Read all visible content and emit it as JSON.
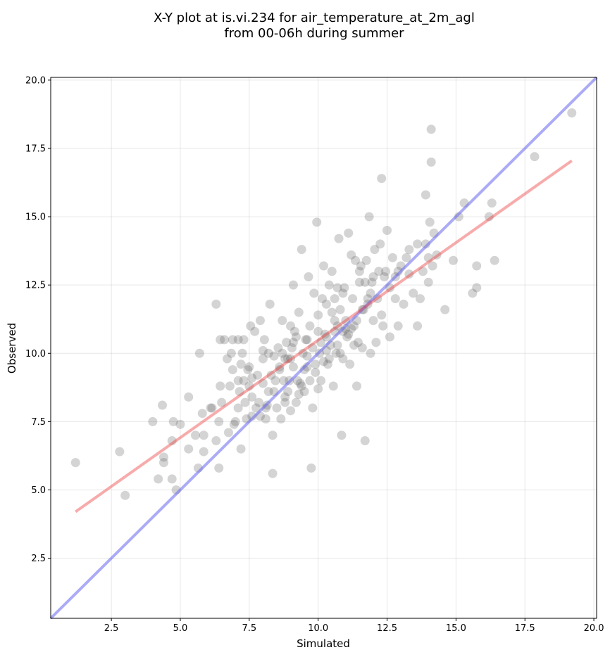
{
  "chart_data": {
    "type": "scatter",
    "title_lines": [
      "X-Y plot at is.vi.234 for air_temperature_at_2m_agl",
      "from 00-06h during summer"
    ],
    "xlabel": "Simulated",
    "ylabel": "Observed",
    "xlim": [
      0.3,
      20.1
    ],
    "ylim": [
      0.3,
      20.1
    ],
    "x_ticks": [
      2.5,
      5.0,
      7.5,
      10.0,
      12.5,
      15.0,
      17.5,
      20.0
    ],
    "y_ticks": [
      2.5,
      5.0,
      7.5,
      10.0,
      12.5,
      15.0,
      17.5,
      20.0
    ],
    "x_tick_labels": [
      "2.5",
      "5.0",
      "7.5",
      "10.0",
      "12.5",
      "15.0",
      "17.5",
      "20.0"
    ],
    "y_tick_labels": [
      "2.5",
      "5.0",
      "7.5",
      "10.0",
      "12.5",
      "15.0",
      "17.5",
      "20.0"
    ],
    "grid": true,
    "point_color": "#555555",
    "point_opacity": 0.25,
    "identity_line": {
      "color": "#6666ee",
      "opacity": 0.55,
      "from": [
        0.3,
        0.3
      ],
      "to": [
        20.1,
        20.1
      ]
    },
    "fit_line": {
      "color": "#ee4444",
      "opacity": 0.45,
      "from": [
        1.2,
        4.2
      ],
      "to": [
        19.2,
        17.05
      ]
    },
    "points": [
      [
        1.2,
        6.0
      ],
      [
        2.8,
        6.4
      ],
      [
        3.0,
        4.8
      ],
      [
        4.0,
        7.5
      ],
      [
        4.2,
        5.4
      ],
      [
        4.35,
        8.1
      ],
      [
        4.4,
        6.2
      ],
      [
        4.4,
        6.0
      ],
      [
        4.7,
        5.4
      ],
      [
        4.7,
        6.8
      ],
      [
        4.75,
        7.5
      ],
      [
        4.85,
        5.0
      ],
      [
        5.0,
        7.4
      ],
      [
        5.3,
        8.4
      ],
      [
        5.3,
        6.5
      ],
      [
        5.55,
        7.0
      ],
      [
        5.65,
        5.8
      ],
      [
        5.7,
        10.0
      ],
      [
        5.8,
        7.8
      ],
      [
        5.85,
        6.4
      ],
      [
        5.85,
        7.0
      ],
      [
        6.1,
        8.0
      ],
      [
        6.15,
        8.0
      ],
      [
        6.3,
        6.8
      ],
      [
        6.3,
        11.8
      ],
      [
        6.4,
        5.8
      ],
      [
        6.4,
        7.5
      ],
      [
        6.45,
        8.8
      ],
      [
        6.45,
        10.5
      ],
      [
        6.5,
        8.2
      ],
      [
        6.6,
        10.5
      ],
      [
        6.7,
        9.8
      ],
      [
        6.75,
        7.1
      ],
      [
        6.8,
        8.8
      ],
      [
        6.85,
        10.0
      ],
      [
        6.9,
        10.5
      ],
      [
        6.9,
        9.4
      ],
      [
        6.95,
        7.4
      ],
      [
        7.0,
        7.5
      ],
      [
        7.1,
        8.0
      ],
      [
        7.1,
        10.5
      ],
      [
        7.1,
        9.0
      ],
      [
        7.15,
        8.6
      ],
      [
        7.2,
        6.5
      ],
      [
        7.2,
        9.6
      ],
      [
        7.25,
        10.0
      ],
      [
        7.3,
        10.5
      ],
      [
        7.3,
        9.0
      ],
      [
        7.35,
        8.2
      ],
      [
        7.4,
        7.6
      ],
      [
        7.45,
        9.4
      ],
      [
        7.5,
        9.5
      ],
      [
        7.5,
        8.8
      ],
      [
        7.55,
        11.0
      ],
      [
        7.6,
        7.7
      ],
      [
        7.6,
        8.4
      ],
      [
        7.6,
        9.1
      ],
      [
        7.7,
        10.8
      ],
      [
        7.75,
        8.0
      ],
      [
        7.85,
        8.2
      ],
      [
        7.9,
        7.7
      ],
      [
        7.9,
        11.2
      ],
      [
        8.0,
        8.9
      ],
      [
        8.0,
        10.1
      ],
      [
        8.05,
        10.5
      ],
      [
        8.1,
        7.6
      ],
      [
        8.1,
        8.0
      ],
      [
        8.15,
        8.1
      ],
      [
        8.2,
        10.0
      ],
      [
        8.25,
        11.8
      ],
      [
        8.3,
        9.2
      ],
      [
        8.35,
        5.6
      ],
      [
        8.35,
        7.0
      ],
      [
        8.4,
        8.6
      ],
      [
        8.45,
        9.0
      ],
      [
        8.5,
        8.0
      ],
      [
        8.55,
        10.2
      ],
      [
        8.6,
        9.5
      ],
      [
        8.65,
        7.6
      ],
      [
        8.7,
        11.2
      ],
      [
        8.75,
        9.0
      ],
      [
        8.8,
        8.2
      ],
      [
        8.8,
        9.8
      ],
      [
        8.85,
        10.4
      ],
      [
        8.9,
        8.6
      ],
      [
        8.95,
        9.0
      ],
      [
        9.0,
        7.9
      ],
      [
        9.0,
        11.0
      ],
      [
        9.05,
        10.2
      ],
      [
        9.1,
        12.5
      ],
      [
        9.1,
        9.5
      ],
      [
        9.15,
        10.8
      ],
      [
        9.2,
        8.2
      ],
      [
        9.25,
        9.0
      ],
      [
        9.3,
        11.5
      ],
      [
        9.35,
        8.9
      ],
      [
        9.4,
        13.8
      ],
      [
        9.45,
        10.0
      ],
      [
        9.5,
        8.6
      ],
      [
        9.55,
        10.5
      ],
      [
        9.6,
        9.5
      ],
      [
        9.65,
        12.8
      ],
      [
        9.7,
        11.0
      ],
      [
        9.75,
        5.8
      ],
      [
        9.8,
        8.0
      ],
      [
        9.85,
        12.2
      ],
      [
        9.9,
        9.6
      ],
      [
        9.95,
        14.8
      ],
      [
        10.0,
        11.4
      ],
      [
        10.0,
        8.7
      ],
      [
        10.05,
        10.0
      ],
      [
        10.1,
        9.0
      ],
      [
        10.15,
        12.0
      ],
      [
        10.2,
        13.2
      ],
      [
        10.25,
        10.7
      ],
      [
        10.3,
        11.8
      ],
      [
        10.35,
        9.6
      ],
      [
        10.4,
        12.5
      ],
      [
        10.45,
        10.3
      ],
      [
        10.5,
        13.0
      ],
      [
        10.55,
        8.8
      ],
      [
        10.6,
        11.2
      ],
      [
        10.65,
        10.0
      ],
      [
        10.7,
        12.4
      ],
      [
        10.75,
        14.2
      ],
      [
        10.8,
        11.6
      ],
      [
        10.85,
        7.0
      ],
      [
        10.9,
        10.8
      ],
      [
        10.95,
        12.4
      ],
      [
        11.0,
        11.2
      ],
      [
        11.05,
        10.6
      ],
      [
        11.1,
        14.4
      ],
      [
        11.15,
        9.6
      ],
      [
        11.2,
        13.6
      ],
      [
        11.25,
        12.0
      ],
      [
        11.3,
        11.0
      ],
      [
        11.35,
        13.4
      ],
      [
        11.4,
        8.8
      ],
      [
        11.45,
        10.4
      ],
      [
        11.5,
        12.6
      ],
      [
        11.55,
        13.2
      ],
      [
        11.6,
        10.2
      ],
      [
        11.65,
        11.6
      ],
      [
        11.7,
        6.8
      ],
      [
        11.75,
        13.4
      ],
      [
        11.8,
        12.0
      ],
      [
        11.85,
        15.0
      ],
      [
        11.9,
        10.0
      ],
      [
        11.95,
        12.6
      ],
      [
        12.0,
        11.2
      ],
      [
        12.05,
        13.8
      ],
      [
        12.1,
        10.4
      ],
      [
        12.15,
        12.0
      ],
      [
        12.2,
        13.0
      ],
      [
        12.25,
        14.0
      ],
      [
        12.3,
        16.4
      ],
      [
        12.35,
        11.0
      ],
      [
        12.4,
        12.8
      ],
      [
        12.45,
        13.0
      ],
      [
        12.5,
        14.5
      ],
      [
        12.6,
        10.6
      ],
      [
        12.7,
        13.5
      ],
      [
        12.8,
        12.8
      ],
      [
        12.9,
        11.0
      ],
      [
        13.0,
        13.2
      ],
      [
        13.1,
        11.8
      ],
      [
        13.2,
        13.5
      ],
      [
        13.3,
        13.8
      ],
      [
        13.45,
        12.2
      ],
      [
        13.6,
        11.0
      ],
      [
        13.7,
        12.0
      ],
      [
        13.8,
        13.0
      ],
      [
        13.9,
        14.0
      ],
      [
        13.9,
        15.8
      ],
      [
        14.0,
        12.6
      ],
      [
        14.0,
        13.5
      ],
      [
        14.05,
        14.8
      ],
      [
        14.1,
        18.2
      ],
      [
        14.1,
        17.0
      ],
      [
        14.15,
        13.2
      ],
      [
        14.2,
        14.4
      ],
      [
        14.3,
        13.6
      ],
      [
        14.6,
        11.6
      ],
      [
        14.9,
        13.4
      ],
      [
        15.1,
        15.0
      ],
      [
        15.3,
        15.5
      ],
      [
        15.6,
        12.2
      ],
      [
        15.75,
        12.4
      ],
      [
        15.75,
        13.2
      ],
      [
        16.2,
        15.0
      ],
      [
        16.3,
        15.5
      ],
      [
        16.4,
        13.4
      ],
      [
        17.85,
        17.2
      ],
      [
        19.2,
        18.8
      ],
      [
        8.2,
        8.6
      ],
      [
        8.9,
        9.8
      ],
      [
        9.2,
        10.6
      ],
      [
        9.5,
        9.4
      ],
      [
        9.8,
        10.2
      ],
      [
        10.1,
        10.4
      ],
      [
        10.3,
        10.1
      ],
      [
        10.6,
        10.8
      ],
      [
        10.8,
        10.0
      ],
      [
        11.0,
        10.9
      ],
      [
        9.4,
        8.8
      ],
      [
        9.6,
        9.9
      ],
      [
        9.9,
        9.3
      ],
      [
        10.2,
        9.7
      ],
      [
        10.4,
        9.8
      ],
      [
        10.7,
        10.3
      ],
      [
        10.9,
        9.8
      ],
      [
        11.1,
        10.7
      ],
      [
        11.3,
        10.3
      ],
      [
        11.6,
        11.6
      ],
      [
        8.6,
        9.4
      ],
      [
        8.8,
        8.4
      ],
      [
        9.0,
        9.8
      ],
      [
        9.3,
        8.5
      ],
      [
        9.7,
        9.0
      ],
      [
        10.0,
        10.8
      ],
      [
        10.5,
        11.5
      ],
      [
        10.7,
        11.0
      ],
      [
        11.2,
        10.9
      ],
      [
        11.8,
        11.8
      ],
      [
        7.8,
        9.2
      ],
      [
        8.0,
        9.8
      ],
      [
        8.4,
        9.9
      ],
      [
        8.7,
        10.0
      ],
      [
        9.1,
        10.4
      ],
      [
        9.6,
        10.5
      ],
      [
        10.3,
        10.6
      ],
      [
        11.4,
        11.2
      ],
      [
        11.9,
        12.2
      ],
      [
        12.3,
        11.4
      ],
      [
        12.6,
        12.4
      ],
      [
        12.9,
        13.0
      ],
      [
        13.3,
        12.9
      ],
      [
        13.6,
        14.0
      ],
      [
        12.0,
        12.8
      ],
      [
        11.7,
        12.6
      ],
      [
        11.5,
        13.0
      ],
      [
        10.6,
        12.0
      ],
      [
        10.9,
        12.2
      ],
      [
        12.8,
        12.0
      ]
    ]
  }
}
